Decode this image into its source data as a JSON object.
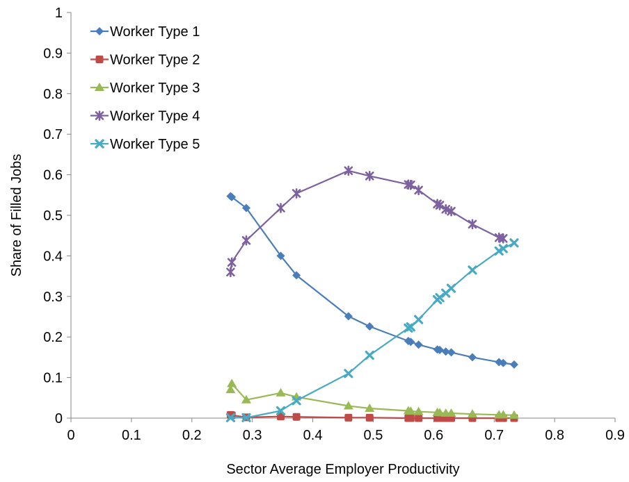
{
  "chart_data": {
    "type": "scatter",
    "title": "",
    "xlabel": "Sector Average Employer Productivity",
    "ylabel": "Share of Filled Jobs",
    "xlim": [
      0,
      0.9
    ],
    "ylim": [
      0,
      1
    ],
    "x_ticks": [
      "0",
      "0.1",
      "0.2",
      "0.3",
      "0.4",
      "0.5",
      "0.6",
      "0.7",
      "0.8",
      "0.9"
    ],
    "y_ticks": [
      "0",
      "0.1",
      "0.2",
      "0.3",
      "0.4",
      "0.5",
      "0.6",
      "0.7",
      "0.8",
      "0.9",
      "1"
    ],
    "grid": false,
    "legend_position": "top-left",
    "series": [
      {
        "name": "Worker Type 1",
        "color": "#4a7ebb",
        "marker": "diamond",
        "x": [
          0.264,
          0.266,
          0.29,
          0.347,
          0.373,
          0.459,
          0.494,
          0.558,
          0.562,
          0.575,
          0.606,
          0.61,
          0.62,
          0.629,
          0.664,
          0.708,
          0.715,
          0.733
        ],
        "y": [
          0.547,
          0.545,
          0.518,
          0.4,
          0.352,
          0.251,
          0.226,
          0.19,
          0.188,
          0.181,
          0.169,
          0.168,
          0.164,
          0.162,
          0.15,
          0.138,
          0.136,
          0.132
        ]
      },
      {
        "name": "Worker Type 2",
        "color": "#be4b48",
        "marker": "square",
        "x": [
          0.264,
          0.266,
          0.29,
          0.347,
          0.373,
          0.459,
          0.494,
          0.558,
          0.562,
          0.575,
          0.606,
          0.61,
          0.62,
          0.629,
          0.664,
          0.708,
          0.715,
          0.733
        ],
        "y": [
          0.008,
          0.007,
          0.002,
          0.004,
          0.003,
          0.001,
          0.001,
          0.0,
          0.0,
          0.0,
          0.0,
          0.0,
          0.0,
          0.0,
          0.0,
          0.0,
          0.0,
          0.0
        ]
      },
      {
        "name": "Worker Type 3",
        "color": "#98b954",
        "marker": "triangle",
        "x": [
          0.264,
          0.266,
          0.29,
          0.347,
          0.373,
          0.459,
          0.494,
          0.558,
          0.562,
          0.575,
          0.606,
          0.61,
          0.62,
          0.629,
          0.664,
          0.708,
          0.715,
          0.733
        ],
        "y": [
          0.07,
          0.085,
          0.045,
          0.062,
          0.052,
          0.03,
          0.024,
          0.018,
          0.017,
          0.016,
          0.014,
          0.013,
          0.012,
          0.012,
          0.01,
          0.008,
          0.008,
          0.007
        ]
      },
      {
        "name": "Worker Type 4",
        "color": "#7d60a0",
        "marker": "star",
        "x": [
          0.264,
          0.266,
          0.29,
          0.347,
          0.373,
          0.459,
          0.494,
          0.558,
          0.562,
          0.575,
          0.606,
          0.61,
          0.62,
          0.629,
          0.664,
          0.708,
          0.715
        ],
        "y": [
          0.36,
          0.384,
          0.438,
          0.518,
          0.554,
          0.61,
          0.597,
          0.576,
          0.575,
          0.562,
          0.528,
          0.525,
          0.515,
          0.51,
          0.478,
          0.445,
          0.443
        ]
      },
      {
        "name": "Worker Type 5",
        "color": "#46aac5",
        "marker": "x",
        "x": [
          0.264,
          0.29,
          0.347,
          0.373,
          0.459,
          0.494,
          0.558,
          0.562,
          0.575,
          0.606,
          0.61,
          0.62,
          0.629,
          0.664,
          0.708,
          0.715,
          0.733
        ],
        "y": [
          0.001,
          0.001,
          0.018,
          0.043,
          0.11,
          0.155,
          0.222,
          0.225,
          0.243,
          0.292,
          0.297,
          0.308,
          0.32,
          0.365,
          0.412,
          0.418,
          0.432
        ]
      }
    ]
  }
}
